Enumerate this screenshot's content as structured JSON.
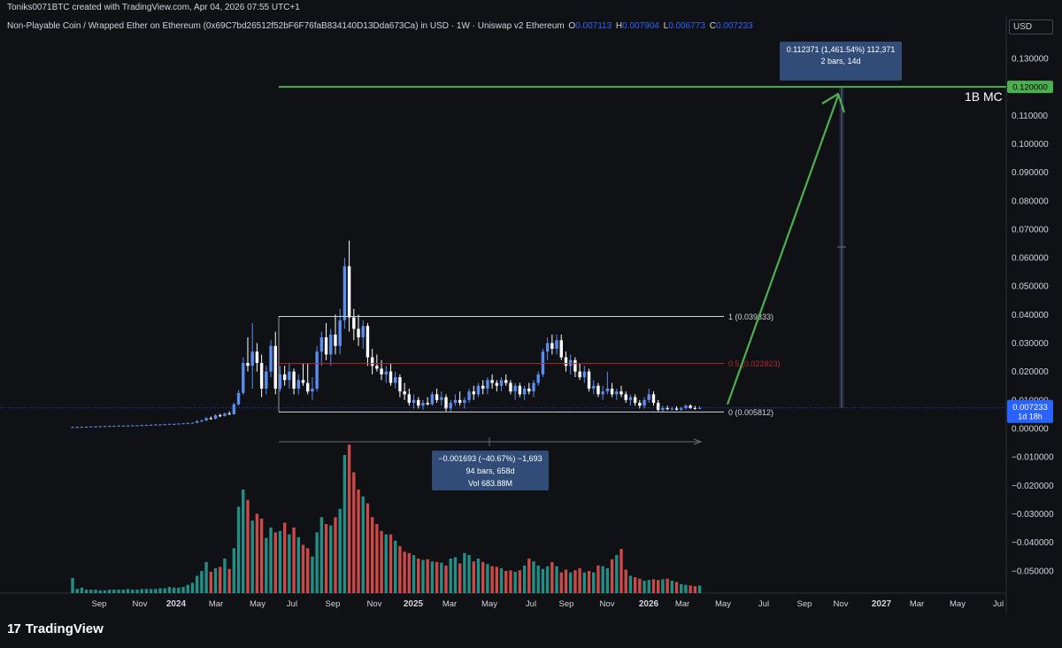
{
  "credit": "Toniks0071BTC created with TradingView.com, Apr 04, 2026 07:55 UTC+1",
  "symbol": {
    "title": "Non-Playable Coin / Wrapped Ether on Ethereum (0x69C7bd26512f52bF6F76faB834140D13Dda673Ca) in USD · 1W · Uniswap v2 Ethereum",
    "o_label": "O",
    "o_value": "0.007113",
    "h_label": "H",
    "h_value": "0.007904",
    "l_label": "L",
    "l_value": "0.006773",
    "c_label": "C",
    "c_value": "0.007233"
  },
  "currency": "USD",
  "brand": {
    "mark": "17",
    "name": "TradingView"
  },
  "colors": {
    "up": "#5b8def",
    "down": "#ffffff",
    "vol_up": "#26a69a",
    "vol_down": "#ef5350",
    "target": "#4caf50",
    "fib_mid": "#b22833",
    "price": "#2962ff"
  },
  "chart_data": {
    "type": "candlestick",
    "ylim": [
      -0.056,
      0.136
    ],
    "y_ticks": [
      "0.130000",
      "0.110000",
      "0.100000",
      "0.090000",
      "0.080000",
      "0.070000",
      "0.060000",
      "0.050000",
      "0.040000",
      "0.030000",
      "0.020000",
      "0.010000",
      "0.000000",
      "−0.010000",
      "−0.020000",
      "−0.030000",
      "−0.040000",
      "−0.050000"
    ],
    "x_ticks": [
      "Sep",
      "Nov",
      "2024",
      "Mar",
      "May",
      "Jul",
      "Sep",
      "Nov",
      "2025",
      "Mar",
      "May",
      "Jul",
      "Sep",
      "Nov",
      "2026",
      "Mar",
      "May",
      "Jul",
      "Sep",
      "Nov",
      "2027",
      "Mar",
      "May",
      "Jul"
    ],
    "ohlc": [
      [
        0.0004,
        0.0006,
        0.0003,
        0.0005
      ],
      [
        0.0005,
        0.0007,
        0.0004,
        0.0005
      ],
      [
        0.0005,
        0.0006,
        0.0004,
        0.0006
      ],
      [
        0.0006,
        0.0007,
        0.0005,
        0.0006
      ],
      [
        0.0006,
        0.0008,
        0.0005,
        0.0007
      ],
      [
        0.0007,
        0.0008,
        0.0006,
        0.0007
      ],
      [
        0.0007,
        0.0008,
        0.0006,
        0.0008
      ],
      [
        0.0008,
        0.0009,
        0.0007,
        0.0008
      ],
      [
        0.0008,
        0.001,
        0.0007,
        0.0009
      ],
      [
        0.0009,
        0.001,
        0.0008,
        0.0009
      ],
      [
        0.0009,
        0.0011,
        0.0008,
        0.001
      ],
      [
        0.001,
        0.0011,
        0.0009,
        0.001
      ],
      [
        0.001,
        0.0011,
        0.0009,
        0.001
      ],
      [
        0.001,
        0.0012,
        0.0009,
        0.0011
      ],
      [
        0.0011,
        0.0012,
        0.001,
        0.0011
      ],
      [
        0.0011,
        0.0013,
        0.001,
        0.0012
      ],
      [
        0.0012,
        0.0013,
        0.0011,
        0.0012
      ],
      [
        0.0012,
        0.0014,
        0.0011,
        0.0013
      ],
      [
        0.0013,
        0.0015,
        0.0012,
        0.0014
      ],
      [
        0.0014,
        0.0015,
        0.0013,
        0.0014
      ],
      [
        0.0014,
        0.0016,
        0.0013,
        0.0015
      ],
      [
        0.0015,
        0.0017,
        0.0014,
        0.0016
      ],
      [
        0.0016,
        0.0017,
        0.0015,
        0.0016
      ],
      [
        0.0016,
        0.0018,
        0.0015,
        0.0017
      ],
      [
        0.0017,
        0.0019,
        0.0016,
        0.0018
      ],
      [
        0.0018,
        0.002,
        0.0017,
        0.0019
      ],
      [
        0.0019,
        0.0021,
        0.0018,
        0.002
      ],
      [
        0.002,
        0.003,
        0.0019,
        0.0025
      ],
      [
        0.0025,
        0.0032,
        0.0022,
        0.0028
      ],
      [
        0.0028,
        0.004,
        0.0026,
        0.0036
      ],
      [
        0.0036,
        0.0042,
        0.0031,
        0.0034
      ],
      [
        0.0034,
        0.005,
        0.0032,
        0.0046
      ],
      [
        0.0046,
        0.0052,
        0.004,
        0.0044
      ],
      [
        0.0044,
        0.0056,
        0.0042,
        0.0052
      ],
      [
        0.0052,
        0.006,
        0.0048,
        0.005
      ],
      [
        0.005,
        0.009,
        0.0049,
        0.0085
      ],
      [
        0.0085,
        0.0135,
        0.008,
        0.0125
      ],
      [
        0.0125,
        0.025,
        0.0118,
        0.023
      ],
      [
        0.023,
        0.032,
        0.02,
        0.022
      ],
      [
        0.022,
        0.037,
        0.014,
        0.027
      ],
      [
        0.027,
        0.03,
        0.02,
        0.023
      ],
      [
        0.023,
        0.026,
        0.011,
        0.014
      ],
      [
        0.014,
        0.022,
        0.012,
        0.02
      ],
      [
        0.02,
        0.031,
        0.018,
        0.029
      ],
      [
        0.029,
        0.034,
        0.012,
        0.014
      ],
      [
        0.014,
        0.022,
        0.013,
        0.019
      ],
      [
        0.019,
        0.022,
        0.015,
        0.017
      ],
      [
        0.017,
        0.023,
        0.014,
        0.02
      ],
      [
        0.02,
        0.021,
        0.012,
        0.014
      ],
      [
        0.014,
        0.019,
        0.012,
        0.017
      ],
      [
        0.017,
        0.023,
        0.015,
        0.016
      ],
      [
        0.016,
        0.023,
        0.012,
        0.013
      ],
      [
        0.013,
        0.018,
        0.01,
        0.014
      ],
      [
        0.014,
        0.029,
        0.013,
        0.027
      ],
      [
        0.027,
        0.034,
        0.022,
        0.032
      ],
      [
        0.032,
        0.037,
        0.024,
        0.026
      ],
      [
        0.026,
        0.035,
        0.022,
        0.033
      ],
      [
        0.033,
        0.04,
        0.026,
        0.029
      ],
      [
        0.029,
        0.042,
        0.026,
        0.038
      ],
      [
        0.038,
        0.06,
        0.035,
        0.057
      ],
      [
        0.057,
        0.066,
        0.034,
        0.039
      ],
      [
        0.039,
        0.042,
        0.031,
        0.035
      ],
      [
        0.035,
        0.04,
        0.029,
        0.032
      ],
      [
        0.032,
        0.038,
        0.028,
        0.036
      ],
      [
        0.036,
        0.037,
        0.022,
        0.025
      ],
      [
        0.025,
        0.028,
        0.019,
        0.022
      ],
      [
        0.022,
        0.026,
        0.02,
        0.021
      ],
      [
        0.021,
        0.024,
        0.017,
        0.019
      ],
      [
        0.019,
        0.022,
        0.016,
        0.02
      ],
      [
        0.02,
        0.023,
        0.015,
        0.016
      ],
      [
        0.016,
        0.02,
        0.014,
        0.018
      ],
      [
        0.018,
        0.019,
        0.011,
        0.013
      ],
      [
        0.013,
        0.016,
        0.01,
        0.012
      ],
      [
        0.012,
        0.014,
        0.008,
        0.009
      ],
      [
        0.009,
        0.012,
        0.007,
        0.01
      ],
      [
        0.01,
        0.011,
        0.007,
        0.008
      ],
      [
        0.008,
        0.01,
        0.0065,
        0.009
      ],
      [
        0.009,
        0.011,
        0.008,
        0.0085
      ],
      [
        0.0085,
        0.013,
        0.008,
        0.012
      ],
      [
        0.012,
        0.014,
        0.009,
        0.01
      ],
      [
        0.01,
        0.013,
        0.008,
        0.011
      ],
      [
        0.011,
        0.012,
        0.006,
        0.007
      ],
      [
        0.007,
        0.01,
        0.0058,
        0.009
      ],
      [
        0.009,
        0.012,
        0.008,
        0.01
      ],
      [
        0.01,
        0.013,
        0.008,
        0.009
      ],
      [
        0.009,
        0.011,
        0.007,
        0.01
      ],
      [
        0.01,
        0.014,
        0.009,
        0.013
      ],
      [
        0.013,
        0.015,
        0.01,
        0.012
      ],
      [
        0.012,
        0.016,
        0.011,
        0.015
      ],
      [
        0.015,
        0.017,
        0.012,
        0.014
      ],
      [
        0.014,
        0.018,
        0.012,
        0.017
      ],
      [
        0.017,
        0.019,
        0.014,
        0.016
      ],
      [
        0.016,
        0.017,
        0.013,
        0.015
      ],
      [
        0.015,
        0.018,
        0.013,
        0.017
      ],
      [
        0.017,
        0.019,
        0.015,
        0.016
      ],
      [
        0.016,
        0.017,
        0.012,
        0.013
      ],
      [
        0.013,
        0.016,
        0.01,
        0.015
      ],
      [
        0.015,
        0.016,
        0.011,
        0.012
      ],
      [
        0.012,
        0.015,
        0.01,
        0.014
      ],
      [
        0.014,
        0.016,
        0.012,
        0.013
      ],
      [
        0.013,
        0.017,
        0.011,
        0.016
      ],
      [
        0.016,
        0.02,
        0.015,
        0.019
      ],
      [
        0.019,
        0.028,
        0.018,
        0.027
      ],
      [
        0.027,
        0.032,
        0.024,
        0.03
      ],
      [
        0.03,
        0.033,
        0.026,
        0.028
      ],
      [
        0.028,
        0.033,
        0.026,
        0.031
      ],
      [
        0.031,
        0.033,
        0.024,
        0.025
      ],
      [
        0.025,
        0.027,
        0.02,
        0.022
      ],
      [
        0.022,
        0.026,
        0.019,
        0.024
      ],
      [
        0.024,
        0.025,
        0.018,
        0.02
      ],
      [
        0.02,
        0.023,
        0.017,
        0.018
      ],
      [
        0.018,
        0.022,
        0.016,
        0.02
      ],
      [
        0.02,
        0.021,
        0.013,
        0.014
      ],
      [
        0.014,
        0.017,
        0.012,
        0.015
      ],
      [
        0.015,
        0.016,
        0.011,
        0.012
      ],
      [
        0.012,
        0.015,
        0.01,
        0.013
      ],
      [
        0.013,
        0.02,
        0.012,
        0.014
      ],
      [
        0.014,
        0.016,
        0.011,
        0.012
      ],
      [
        0.012,
        0.014,
        0.01,
        0.013
      ],
      [
        0.013,
        0.015,
        0.011,
        0.012
      ],
      [
        0.012,
        0.013,
        0.009,
        0.01
      ],
      [
        0.01,
        0.012,
        0.008,
        0.011
      ],
      [
        0.011,
        0.012,
        0.008,
        0.009
      ],
      [
        0.009,
        0.01,
        0.007,
        0.008
      ],
      [
        0.008,
        0.011,
        0.007,
        0.01
      ],
      [
        0.01,
        0.014,
        0.009,
        0.012
      ],
      [
        0.012,
        0.013,
        0.008,
        0.009
      ],
      [
        0.009,
        0.01,
        0.006,
        0.0065
      ],
      [
        0.0065,
        0.008,
        0.0058,
        0.0072
      ],
      [
        0.0072,
        0.008,
        0.0064,
        0.0068
      ],
      [
        0.0068,
        0.0077,
        0.0062,
        0.007
      ],
      [
        0.007,
        0.0078,
        0.0063,
        0.0066
      ],
      [
        0.0066,
        0.0076,
        0.0062,
        0.0071
      ],
      [
        0.0071,
        0.0085,
        0.0066,
        0.008
      ],
      [
        0.008,
        0.0085,
        0.0068,
        0.0072
      ],
      [
        0.0072,
        0.0079,
        0.0066,
        0.0071
      ],
      [
        0.0071,
        0.0079,
        0.0068,
        0.0072
      ]
    ],
    "volume": [
      2.2,
      0.6,
      0.8,
      0.5,
      0.5,
      0.5,
      0.4,
      0.4,
      0.5,
      0.5,
      0.5,
      0.5,
      0.6,
      0.5,
      0.5,
      0.6,
      0.6,
      0.6,
      0.6,
      0.7,
      0.7,
      0.9,
      0.8,
      0.8,
      0.9,
      1.2,
      1.5,
      2.5,
      3.2,
      4.5,
      3.1,
      3.6,
      3.8,
      5.0,
      3.5,
      6.5,
      12.5,
      15.0,
      13.5,
      10.5,
      11.5,
      10.8,
      8.0,
      9.5,
      8.8,
      9.0,
      10.2,
      8.5,
      9.5,
      8.1,
      7.0,
      6.5,
      5.3,
      8.8,
      11.0,
      10.0,
      9.8,
      11.0,
      12.2,
      20.0,
      21.5,
      17.5,
      15.0,
      14.0,
      13.0,
      11.0,
      10.0,
      9.0,
      8.5,
      8.5,
      7.6,
      6.8,
      6.0,
      5.8,
      5.5,
      5.0,
      4.8,
      4.9,
      4.6,
      4.5,
      4.4,
      4.0,
      5.0,
      5.2,
      4.3,
      5.8,
      5.5,
      4.6,
      5.0,
      4.5,
      4.2,
      3.9,
      3.8,
      3.6,
      3.2,
      3.3,
      3.1,
      3.3,
      4.0,
      5.0,
      4.6,
      4.0,
      3.5,
      3.9,
      4.5,
      3.9,
      3.0,
      3.4,
      3.0,
      3.3,
      3.6,
      3.0,
      3.2,
      3.0,
      4.0,
      3.9,
      3.6,
      4.9,
      5.5,
      6.4,
      3.4,
      2.5,
      2.3,
      2.1,
      1.8,
      1.9,
      2.0,
      1.9,
      2.0,
      2.1,
      1.8,
      1.6,
      1.3,
      1.2,
      1.1,
      1.0,
      1.1
    ],
    "fib_levels": [
      {
        "ratio": 1,
        "value": 0.03933,
        "label": "1 (0.039333)"
      },
      {
        "ratio": 0.5,
        "value": 0.02282,
        "label": "0.5 (0.022823)"
      },
      {
        "ratio": 0,
        "value": 0.00581,
        "label": "0 (0.005812)"
      }
    ],
    "target_level": {
      "value": 0.12,
      "price_label": "0.120000",
      "annotation": "1B MC"
    },
    "last_price": {
      "value": 0.007233,
      "label": "0.007233",
      "countdown": "1d 18h"
    },
    "measure_up": {
      "line1": "0.112371 (1,461.54%) 112,371",
      "line2": "2 bars, 14d"
    },
    "measure_range": {
      "line1": "−0.001693 (−40.67%) −1,693",
      "line2": "94 bars, 658d",
      "line3": "Vol 683.88M"
    }
  }
}
